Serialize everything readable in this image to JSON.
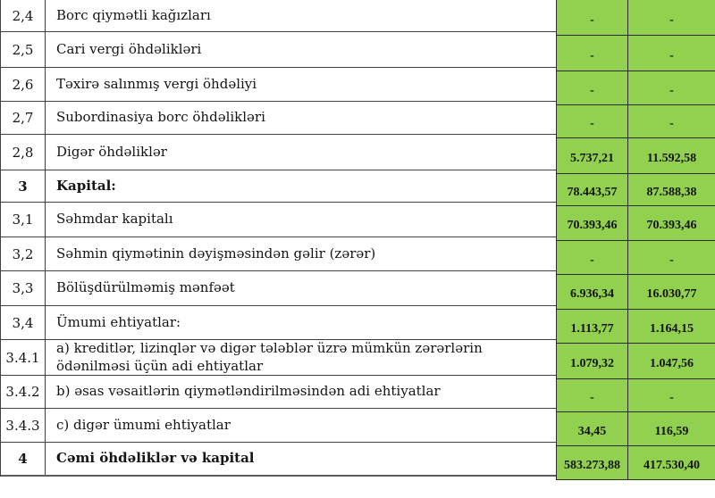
{
  "table": {
    "rows": [
      {
        "num": "2,4",
        "label": "Borc qiymətli kağızları",
        "v1": "-",
        "v2": "-",
        "bold": false
      },
      {
        "num": "2,5",
        "label": "Cari vergi öhdəlikləri",
        "v1": "-",
        "v2": "-",
        "bold": false
      },
      {
        "num": "2,6",
        "label": "Təxirə salınmış vergi öhdəliyi",
        "v1": "-",
        "v2": "-",
        "bold": false
      },
      {
        "num": "2,7",
        "label": "Subordinasiya borc öhdəlikləri",
        "v1": "-",
        "v2": "-",
        "bold": false
      },
      {
        "num": "2,8",
        "label": "Digər öhdəliklər",
        "v1": "5.737,21",
        "v2": "11.592,58",
        "bold": false
      },
      {
        "num": "3",
        "label": "Kapital:",
        "v1": "78.443,57",
        "v2": "87.588,38",
        "bold": true
      },
      {
        "num": "3,1",
        "label": "Səhmdar kapitalı",
        "v1": "70.393,46",
        "v2": "70.393,46",
        "bold": false
      },
      {
        "num": "3,2",
        "label": "Səhmin qiymətinin dəyişməsindən gəlir (zərər)",
        "v1": "-",
        "v2": "-",
        "bold": false
      },
      {
        "num": "3,3",
        "label": "Bölüşdürülməmiş mənfəət",
        "v1": "6.936,34",
        "v2": "16.030,77",
        "bold": false
      },
      {
        "num": "3,4",
        "label": "Ümumi ehtiyatlar:",
        "v1": "1.113,77",
        "v2": "1.164,15",
        "bold": false
      },
      {
        "num": "3.4.1",
        "label": "a) kreditlər, lizinqlər və digər tələblər üzrə mümkün zərərlərin ödənilməsi üçün adi ehtiyatlar",
        "v1": "1.079,32",
        "v2": "1.047,56",
        "bold": false
      },
      {
        "num": "3.4.2",
        "label": "b) əsas vəsaitlərin qiymətləndirilməsindən adi ehtiyatlar",
        "v1": "-",
        "v2": "-",
        "bold": false
      },
      {
        "num": "3.4.3",
        "label": "c) digər ümumi ehtiyatlar",
        "v1": "34,45",
        "v2": "116,59",
        "bold": false
      },
      {
        "num": "4",
        "label": "Cəmi öhdəliklər və kapital",
        "v1": "583.273,88",
        "v2": "417.530,40",
        "bold": true
      }
    ],
    "colors": {
      "value_cell_green": "#92d050",
      "grid_line": "#404040",
      "text": "#141414"
    }
  }
}
